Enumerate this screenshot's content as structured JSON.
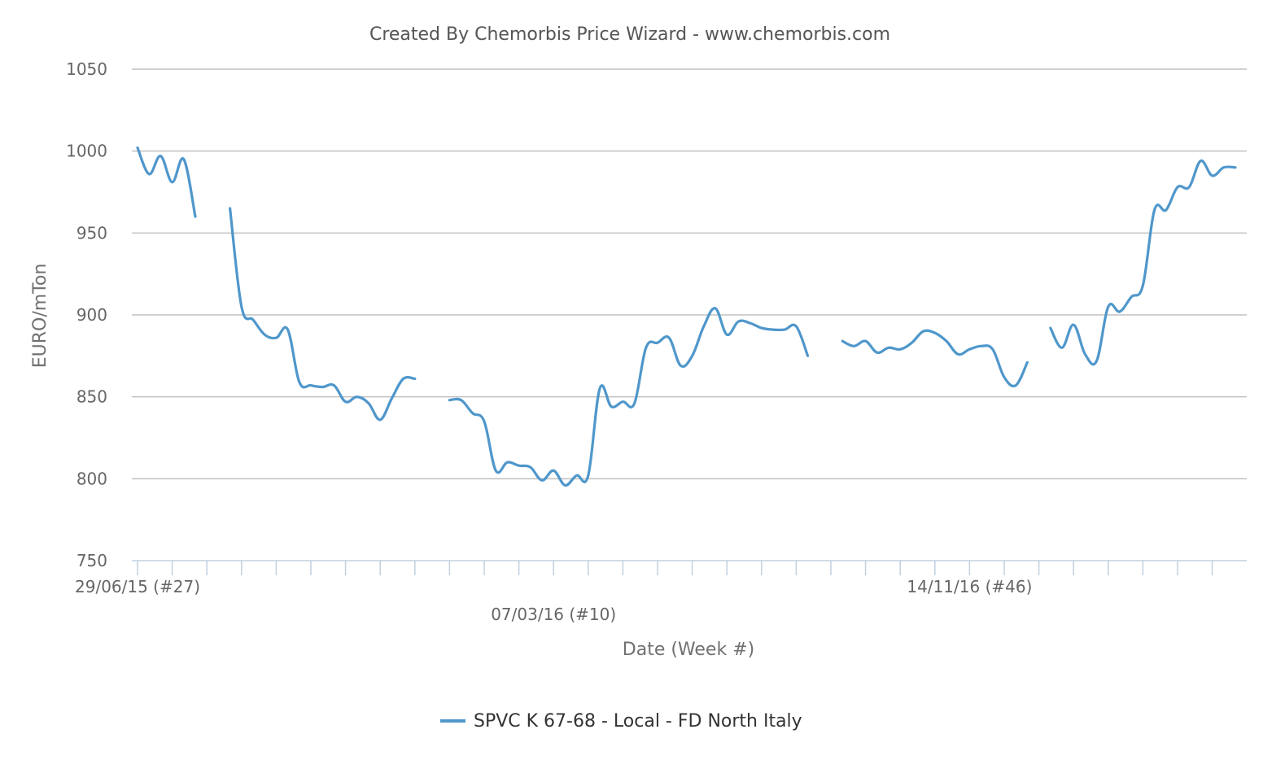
{
  "chart_data": {
    "type": "line",
    "title": "Created By Chemorbis Price Wizard - www.chemorbis.com",
    "xlabel": "Date (Week #)",
    "ylabel": "EURO/mTon",
    "ylim": [
      750,
      1050
    ],
    "yticks": [
      750,
      800,
      850,
      900,
      950,
      1000,
      1050
    ],
    "grid": true,
    "legend_position": "bottom-center",
    "x_tick_labels": [
      {
        "label": "29/06/15 (#27)",
        "week_index": 0
      },
      {
        "label": "07/03/16 (#10)",
        "week_index": 36
      },
      {
        "label": "14/11/16 (#46)",
        "week_index": 72
      }
    ],
    "num_weeks": 96,
    "series": [
      {
        "name": "SPVC K 67-68 - Local - FD North Italy",
        "color": "#4f97cb",
        "segments": [
          [
            [
              0,
              1002
            ],
            [
              1,
              986
            ],
            [
              2,
              997
            ],
            [
              3,
              981
            ],
            [
              4,
              995
            ],
            [
              5,
              960
            ]
          ],
          [
            [
              8,
              965
            ],
            [
              9,
              905
            ],
            [
              10,
              897
            ],
            [
              11,
              888
            ],
            [
              12,
              886
            ],
            [
              13,
              891
            ],
            [
              14,
              859
            ],
            [
              15,
              857
            ],
            [
              16,
              856
            ],
            [
              17,
              857
            ],
            [
              18,
              847
            ],
            [
              19,
              850
            ],
            [
              20,
              846
            ],
            [
              21,
              836
            ],
            [
              22,
              849
            ],
            [
              23,
              861
            ],
            [
              24,
              861
            ]
          ],
          [
            [
              27,
              848
            ],
            [
              28,
              848
            ],
            [
              29,
              840
            ],
            [
              30,
              835
            ],
            [
              31,
              805
            ],
            [
              32,
              810
            ],
            [
              33,
              808
            ],
            [
              34,
              807
            ],
            [
              35,
              799
            ],
            [
              36,
              805
            ],
            [
              37,
              796
            ],
            [
              38,
              802
            ],
            [
              39,
              802
            ],
            [
              40,
              855
            ],
            [
              41,
              844
            ],
            [
              42,
              847
            ],
            [
              43,
              846
            ],
            [
              44,
              880
            ],
            [
              45,
              883
            ],
            [
              46,
              886
            ],
            [
              47,
              869
            ],
            [
              48,
              875
            ],
            [
              49,
              893
            ],
            [
              50,
              904
            ],
            [
              51,
              888
            ],
            [
              52,
              896
            ],
            [
              53,
              895
            ],
            [
              54,
              892
            ],
            [
              55,
              891
            ],
            [
              56,
              891
            ],
            [
              57,
              893
            ],
            [
              58,
              875
            ]
          ],
          [
            [
              61,
              884
            ],
            [
              62,
              881
            ],
            [
              63,
              884
            ],
            [
              64,
              877
            ],
            [
              65,
              880
            ],
            [
              66,
              879
            ],
            [
              67,
              883
            ],
            [
              68,
              890
            ],
            [
              69,
              889
            ],
            [
              70,
              884
            ],
            [
              71,
              876
            ],
            [
              72,
              879
            ],
            [
              73,
              881
            ],
            [
              74,
              879
            ],
            [
              75,
              862
            ],
            [
              76,
              857
            ],
            [
              77,
              871
            ]
          ],
          [
            [
              79,
              892
            ],
            [
              80,
              880
            ],
            [
              81,
              894
            ],
            [
              82,
              876
            ],
            [
              83,
              872
            ],
            [
              84,
              905
            ],
            [
              85,
              902
            ],
            [
              86,
              911
            ],
            [
              87,
              918
            ],
            [
              88,
              964
            ],
            [
              89,
              964
            ],
            [
              90,
              978
            ],
            [
              91,
              978
            ],
            [
              92,
              994
            ],
            [
              93,
              985
            ],
            [
              94,
              990
            ],
            [
              95,
              990
            ]
          ]
        ]
      }
    ]
  }
}
